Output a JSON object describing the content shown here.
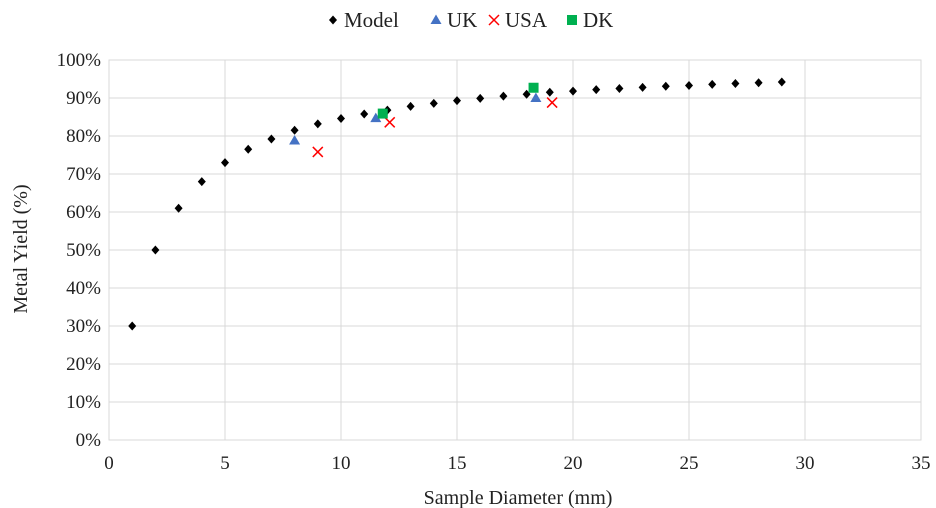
{
  "chart_data": {
    "type": "scatter",
    "title": "",
    "xlabel": "Sample Diameter (mm)",
    "ylabel": "Metal Yield (%)",
    "xlim": [
      0,
      35
    ],
    "ylim": [
      0,
      100
    ],
    "x_ticks": [
      0,
      5,
      10,
      15,
      20,
      25,
      30,
      35
    ],
    "y_ticks": [
      0,
      10,
      20,
      30,
      40,
      50,
      60,
      70,
      80,
      90,
      100
    ],
    "x_tick_labels": [
      "0",
      "5",
      "10",
      "15",
      "20",
      "25",
      "30",
      "35"
    ],
    "y_tick_labels": [
      "0%",
      "10%",
      "20%",
      "30%",
      "40%",
      "50%",
      "60%",
      "70%",
      "80%",
      "90%",
      "100%"
    ],
    "grid": true,
    "legend_position": "top-center",
    "series": [
      {
        "name": "Model",
        "marker": "diamond",
        "color": "#000000",
        "points": [
          [
            1,
            30
          ],
          [
            2,
            50
          ],
          [
            3,
            61
          ],
          [
            4,
            68
          ],
          [
            5,
            73
          ],
          [
            6,
            76.5
          ],
          [
            7,
            79.2
          ],
          [
            8,
            81.5
          ],
          [
            9,
            83.2
          ],
          [
            10,
            84.6
          ],
          [
            11,
            85.8
          ],
          [
            12,
            86.8
          ],
          [
            13,
            87.8
          ],
          [
            14,
            88.6
          ],
          [
            15,
            89.3
          ],
          [
            16,
            89.9
          ],
          [
            17,
            90.5
          ],
          [
            18,
            91
          ],
          [
            19,
            91.5
          ],
          [
            20,
            91.8
          ],
          [
            21,
            92.2
          ],
          [
            22,
            92.5
          ],
          [
            23,
            92.8
          ],
          [
            24,
            93.1
          ],
          [
            25,
            93.3
          ],
          [
            26,
            93.6
          ],
          [
            27,
            93.8
          ],
          [
            28,
            94
          ],
          [
            29,
            94.2
          ]
        ]
      },
      {
        "name": "UK",
        "marker": "triangle",
        "color": "#4472C4",
        "points": [
          [
            8,
            78.8
          ],
          [
            11.5,
            84.7
          ],
          [
            18.4,
            90
          ]
        ]
      },
      {
        "name": "USA",
        "marker": "x",
        "color": "#FF0000",
        "points": [
          [
            9,
            75.8
          ],
          [
            12.1,
            83.6
          ],
          [
            19.1,
            88.8
          ]
        ]
      },
      {
        "name": "DK",
        "marker": "square",
        "color": "#00B050",
        "points": [
          [
            11.8,
            85.9
          ],
          [
            18.3,
            92.7
          ]
        ]
      }
    ]
  }
}
